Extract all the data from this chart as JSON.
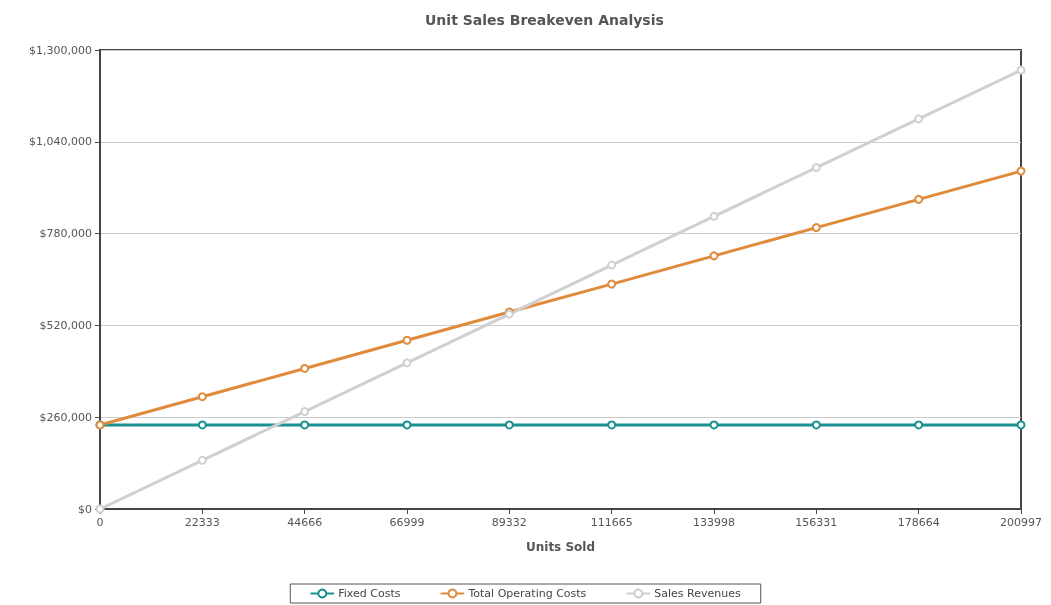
{
  "chart_data": {
    "type": "line",
    "title": "Unit Sales Breakeven Analysis",
    "xlabel": "Units Sold",
    "x": [
      0,
      22333,
      44666,
      66999,
      89332,
      111665,
      133998,
      156331,
      178664,
      200997
    ],
    "series": [
      {
        "name": "Fixed Costs",
        "color": "#1a9090",
        "values": [
          238000,
          238000,
          238000,
          238000,
          238000,
          238000,
          238000,
          238000,
          238000,
          238000
        ]
      },
      {
        "name": "Total Operating Costs",
        "color": "#e08a3c",
        "values": [
          238000,
          318000,
          398000,
          478000,
          558000,
          637000,
          717000,
          797000,
          877000,
          957000
        ]
      },
      {
        "name": "Sales Revenues",
        "color": "#d0d0d0",
        "values": [
          0,
          138000,
          276000,
          414000,
          552000,
          691000,
          829000,
          967000,
          1105000,
          1243000
        ]
      }
    ],
    "xlim": [
      0,
      200997
    ],
    "xticks": [
      0,
      22333,
      44666,
      66999,
      89332,
      111665,
      133998,
      156331,
      178664,
      200997
    ],
    "ylim": [
      0,
      1300000
    ],
    "yticks": [
      {
        "value": 0,
        "label": "$0"
      },
      {
        "value": 260000,
        "label": "$260,000"
      },
      {
        "value": 520000,
        "label": "$520,000"
      },
      {
        "value": 780000,
        "label": "$780,000"
      },
      {
        "value": 1040000,
        "label": "$1,040,000"
      },
      {
        "value": 1300000,
        "label": "$1,300,000"
      }
    ],
    "grid": "y",
    "legend": "bottom",
    "marker": "circle",
    "line_style": "solid"
  }
}
